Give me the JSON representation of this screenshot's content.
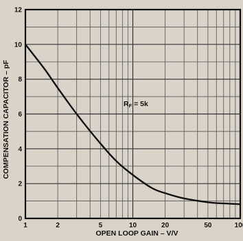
{
  "chart_data": {
    "type": "line",
    "xlabel": "OPEN LOOP GAIN – V/V",
    "ylabel": "COMPENSATION CAPACITOR – pF",
    "x_scale": "log",
    "xlim": [
      1,
      100
    ],
    "ylim": [
      0,
      12
    ],
    "x_ticks": [
      1,
      2,
      5,
      10,
      20,
      50,
      100
    ],
    "x_tick_labels": [
      "1",
      "2",
      "5",
      "10",
      "20",
      "50",
      "100"
    ],
    "y_ticks": [
      0,
      2,
      4,
      6,
      8,
      10,
      12
    ],
    "y_tick_labels": [
      "0",
      "2",
      "4",
      "6",
      "8",
      "10",
      "12"
    ],
    "grid": true,
    "annotation": {
      "main": "R",
      "sub": "F",
      "rest": " = 5k"
    },
    "series": [
      {
        "x": [
          1,
          1.5,
          2,
          3,
          5,
          7,
          10,
          15,
          20,
          30,
          50,
          70,
          100
        ],
        "y": [
          10.0,
          8.6,
          7.5,
          6.0,
          4.3,
          3.3,
          2.5,
          1.75,
          1.45,
          1.15,
          0.93,
          0.86,
          0.82
        ],
        "color": "#111111"
      }
    ]
  }
}
